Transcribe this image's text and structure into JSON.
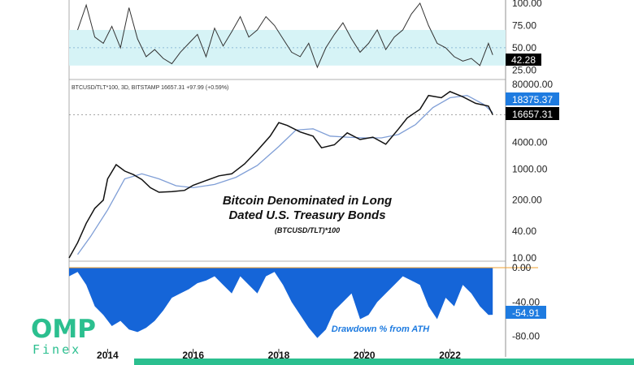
{
  "chart_data": [
    {
      "type": "line",
      "panel": "top-oscillator",
      "yticks": [
        "100.00",
        "75.00",
        "50.00",
        "25.00"
      ],
      "ylim": [
        18,
        100
      ],
      "band": [
        30,
        70
      ],
      "current_label": "42.28",
      "x": [
        2013.3,
        2013.5,
        2013.7,
        2013.9,
        2014.1,
        2014.3,
        2014.5,
        2014.7,
        2014.9,
        2015.1,
        2015.3,
        2015.5,
        2015.7,
        2015.9,
        2016.1,
        2016.3,
        2016.5,
        2016.7,
        2016.9,
        2017.1,
        2017.3,
        2017.5,
        2017.7,
        2017.9,
        2018.1,
        2018.3,
        2018.5,
        2018.7,
        2018.9,
        2019.1,
        2019.3,
        2019.5,
        2019.7,
        2019.9,
        2020.1,
        2020.3,
        2020.5,
        2020.7,
        2020.9,
        2021.1,
        2021.3,
        2021.5,
        2021.7,
        2021.9,
        2022.1,
        2022.3,
        2022.5,
        2022.7,
        2022.9,
        2023.0
      ],
      "values": [
        70,
        98,
        62,
        55,
        74,
        50,
        95,
        60,
        40,
        48,
        38,
        32,
        45,
        55,
        65,
        40,
        72,
        52,
        68,
        85,
        62,
        70,
        85,
        75,
        60,
        45,
        40,
        55,
        28,
        50,
        65,
        78,
        60,
        45,
        55,
        70,
        48,
        62,
        70,
        88,
        100,
        75,
        55,
        50,
        40,
        35,
        38,
        30,
        55,
        42
      ]
    },
    {
      "type": "line",
      "panel": "main-price",
      "scale": "log",
      "header_label": "BTCUSD/TLT*100, 3D, BITSTAMP  16657.31  +97.99 (+0.59%)",
      "title_line1": "Bitcoin Denominated in Long",
      "title_line2": "Dated U.S. Treasury Bonds",
      "subtitle": "(BTCUSD/TLT)*100",
      "yticks": [
        "80000.00",
        "4000.00",
        "1000.00",
        "200.00",
        "40.00",
        "10.00"
      ],
      "ytick_values": [
        80000,
        4000,
        1000,
        200,
        40,
        10
      ],
      "ylim": [
        10,
        80000
      ],
      "ma_label": "18375.37",
      "current_label": "16657.31",
      "x": [
        2013.1,
        2013.3,
        2013.5,
        2013.7,
        2013.9,
        2014.0,
        2014.2,
        2014.4,
        2014.6,
        2014.8,
        2015.0,
        2015.2,
        2015.5,
        2015.8,
        2016.0,
        2016.3,
        2016.6,
        2016.9,
        2017.2,
        2017.5,
        2017.8,
        2018.0,
        2018.2,
        2018.5,
        2018.8,
        2019.0,
        2019.3,
        2019.6,
        2019.9,
        2020.2,
        2020.5,
        2020.8,
        2021.0,
        2021.3,
        2021.5,
        2021.8,
        2022.0,
        2022.3,
        2022.6,
        2022.9,
        2023.0
      ],
      "values": [
        10,
        22,
        60,
        130,
        200,
        600,
        1250,
        900,
        750,
        580,
        380,
        300,
        310,
        330,
        430,
        550,
        700,
        780,
        1300,
        2600,
        5500,
        11000,
        9500,
        6800,
        5500,
        3000,
        3500,
        6500,
        4600,
        5200,
        3600,
        8000,
        14000,
        22000,
        45000,
        40000,
        55000,
        42000,
        30000,
        26000,
        16657
      ],
      "ma_x": [
        2013.3,
        2013.6,
        2014.0,
        2014.4,
        2014.8,
        2015.2,
        2015.6,
        2016.0,
        2016.5,
        2017.0,
        2017.5,
        2018.0,
        2018.4,
        2018.8,
        2019.2,
        2019.6,
        2020.0,
        2020.4,
        2020.8,
        2021.2,
        2021.6,
        2022.0,
        2022.4,
        2022.8,
        2023.0
      ],
      "ma_values": [
        12,
        30,
        120,
        600,
        780,
        600,
        420,
        380,
        450,
        650,
        1200,
        3200,
        7500,
        8000,
        5500,
        5200,
        5000,
        5000,
        6000,
        10000,
        24000,
        40000,
        45000,
        28000,
        18375
      ]
    },
    {
      "type": "area",
      "panel": "drawdown",
      "label": "Drawdown % from ATH",
      "yticks": [
        "0.00",
        "-40.00",
        "-80.00"
      ],
      "ytick_values": [
        0,
        -40,
        -80
      ],
      "ylim": [
        -85,
        0
      ],
      "current_label": "-54.91",
      "x": [
        2013.1,
        2013.3,
        2013.5,
        2013.7,
        2013.9,
        2014.1,
        2014.3,
        2014.5,
        2014.7,
        2014.9,
        2015.1,
        2015.3,
        2015.5,
        2015.7,
        2015.9,
        2016.1,
        2016.3,
        2016.5,
        2016.7,
        2016.9,
        2017.1,
        2017.3,
        2017.5,
        2017.7,
        2017.9,
        2018.1,
        2018.3,
        2018.5,
        2018.7,
        2018.9,
        2019.1,
        2019.3,
        2019.5,
        2019.7,
        2019.9,
        2020.1,
        2020.3,
        2020.5,
        2020.7,
        2020.9,
        2021.1,
        2021.3,
        2021.5,
        2021.7,
        2021.9,
        2022.1,
        2022.3,
        2022.5,
        2022.7,
        2022.9,
        2023.0
      ],
      "values": [
        -10,
        -5,
        -20,
        -45,
        -55,
        -68,
        -62,
        -72,
        -75,
        -70,
        -62,
        -50,
        -35,
        -30,
        -25,
        -18,
        -15,
        -10,
        -20,
        -30,
        -10,
        -20,
        -30,
        -10,
        -5,
        -20,
        -40,
        -55,
        -70,
        -82,
        -72,
        -50,
        -40,
        -30,
        -60,
        -55,
        -40,
        -30,
        -20,
        -10,
        -15,
        -20,
        -45,
        -60,
        -35,
        -45,
        -20,
        -30,
        -45,
        -55,
        -54.91
      ]
    }
  ],
  "x_axis": {
    "range": [
      2013.1,
      2023.3
    ],
    "ticks": [
      {
        "value": 2014,
        "label": "2014"
      },
      {
        "value": 2016,
        "label": "2016"
      },
      {
        "value": 2018,
        "label": "2018"
      },
      {
        "value": 2020,
        "label": "2020"
      },
      {
        "value": 2022,
        "label": "2022"
      }
    ]
  },
  "colors": {
    "price": "#111111",
    "moving_average": "#7f9ed6",
    "band": "#d6f3f6",
    "drawdown": "#1565d8",
    "highlight_box": "#1e7be0",
    "logo": "#2bbf8f",
    "zero_line": "#f0a030"
  },
  "logo": {
    "line1": "OMP",
    "line2": "Finex"
  }
}
